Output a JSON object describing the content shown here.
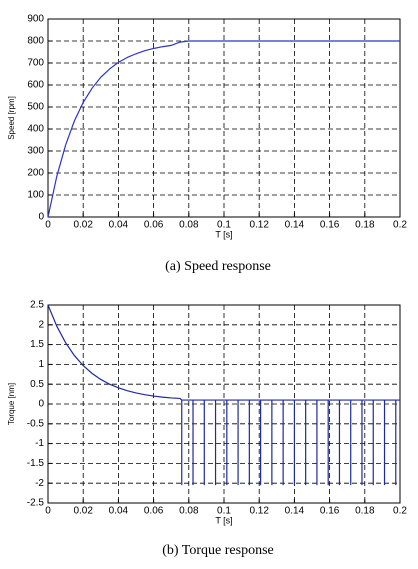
{
  "chart_data": [
    {
      "type": "line",
      "caption": "(a)  Speed  response",
      "xlabel": "T [s]",
      "ylabel": "Speed [rpm]",
      "xlim": [
        0,
        0.2
      ],
      "xticks": [
        0,
        0.02,
        0.04,
        0.06,
        0.08,
        0.1,
        0.12,
        0.14,
        0.16,
        0.18,
        0.2
      ],
      "ylim": [
        0,
        900
      ],
      "yticks": [
        0,
        100,
        200,
        300,
        400,
        500,
        600,
        700,
        800,
        900
      ],
      "grid": true,
      "series": [
        {
          "color": "#2b35c8",
          "x": [
            0,
            0.005,
            0.01,
            0.015,
            0.02,
            0.025,
            0.03,
            0.035,
            0.04,
            0.045,
            0.05,
            0.055,
            0.06,
            0.065,
            0.07,
            0.075,
            0.08,
            0.2
          ],
          "values": [
            0,
            185,
            327,
            437,
            521,
            585,
            635,
            673,
            703,
            725,
            742,
            756,
            766,
            774,
            780,
            795,
            800,
            800
          ]
        }
      ]
    },
    {
      "type": "line",
      "caption": "(b)  Torque  response",
      "xlabel": "T [s]",
      "ylabel": "Torque [nm]",
      "xlim": [
        0,
        0.2
      ],
      "xticks": [
        0,
        0.02,
        0.04,
        0.06,
        0.08,
        0.1,
        0.12,
        0.14,
        0.16,
        0.18,
        0.2
      ],
      "ylim": [
        -2.5,
        2.5
      ],
      "yticks": [
        -2.5,
        -2,
        -1.5,
        -1,
        -0.5,
        0,
        0.5,
        1,
        1.5,
        2,
        2.5
      ],
      "grid": true,
      "series": [
        {
          "color": "#1f2a9e",
          "x": [
            0,
            0.005,
            0.01,
            0.015,
            0.02,
            0.025,
            0.03,
            0.035,
            0.04,
            0.045,
            0.05,
            0.055,
            0.06,
            0.065,
            0.07,
            0.075,
            0.076,
            0.076,
            0.076,
            0.0824,
            0.0824,
            0.0824,
            0.0888,
            0.0888,
            0.0888,
            0.0952,
            0.0952,
            0.0952,
            0.1016,
            0.1016,
            0.1016,
            0.108,
            0.108,
            0.108,
            0.1144,
            0.1144,
            0.1144,
            0.1208,
            0.1208,
            0.1208,
            0.1272,
            0.1272,
            0.1272,
            0.1336,
            0.1336,
            0.1336,
            0.14,
            0.14,
            0.14,
            0.1464,
            0.1464,
            0.1464,
            0.1528,
            0.1528,
            0.1528,
            0.1592,
            0.1592,
            0.1592,
            0.1656,
            0.1656,
            0.1656,
            0.172,
            0.172,
            0.172,
            0.1784,
            0.1784,
            0.1784,
            0.1848,
            0.1848,
            0.1848,
            0.1912,
            0.1912,
            0.1912,
            0.1976,
            0.1976,
            0.1976,
            0.2
          ],
          "values": [
            2.5,
            1.965,
            1.549,
            1.223,
            0.97,
            0.774,
            0.62,
            0.5,
            0.41,
            0.335,
            0.28,
            0.235,
            0.2,
            0.174,
            0.153,
            0.14,
            0.1,
            -2.05,
            0.1,
            0.1,
            -2.05,
            0.1,
            0.1,
            -2.05,
            0.1,
            0.1,
            -2.05,
            0.1,
            0.1,
            -2.05,
            0.1,
            0.1,
            -2.05,
            0.1,
            0.1,
            -2.05,
            0.1,
            0.1,
            -2.05,
            0.1,
            0.1,
            -2.05,
            0.1,
            0.1,
            -2.05,
            0.1,
            0.1,
            -2.05,
            0.1,
            0.1,
            -2.05,
            0.1,
            0.1,
            -2.05,
            0.1,
            0.1,
            -2.05,
            0.1,
            0.1,
            -2.05,
            0.1,
            0.1,
            -2.05,
            0.1,
            0.1,
            -2.05,
            0.1,
            0.1,
            -2.05,
            0.1,
            0.1,
            -2.05,
            0.1,
            0.1,
            -2.05,
            0.1,
            0.1
          ]
        }
      ]
    }
  ]
}
